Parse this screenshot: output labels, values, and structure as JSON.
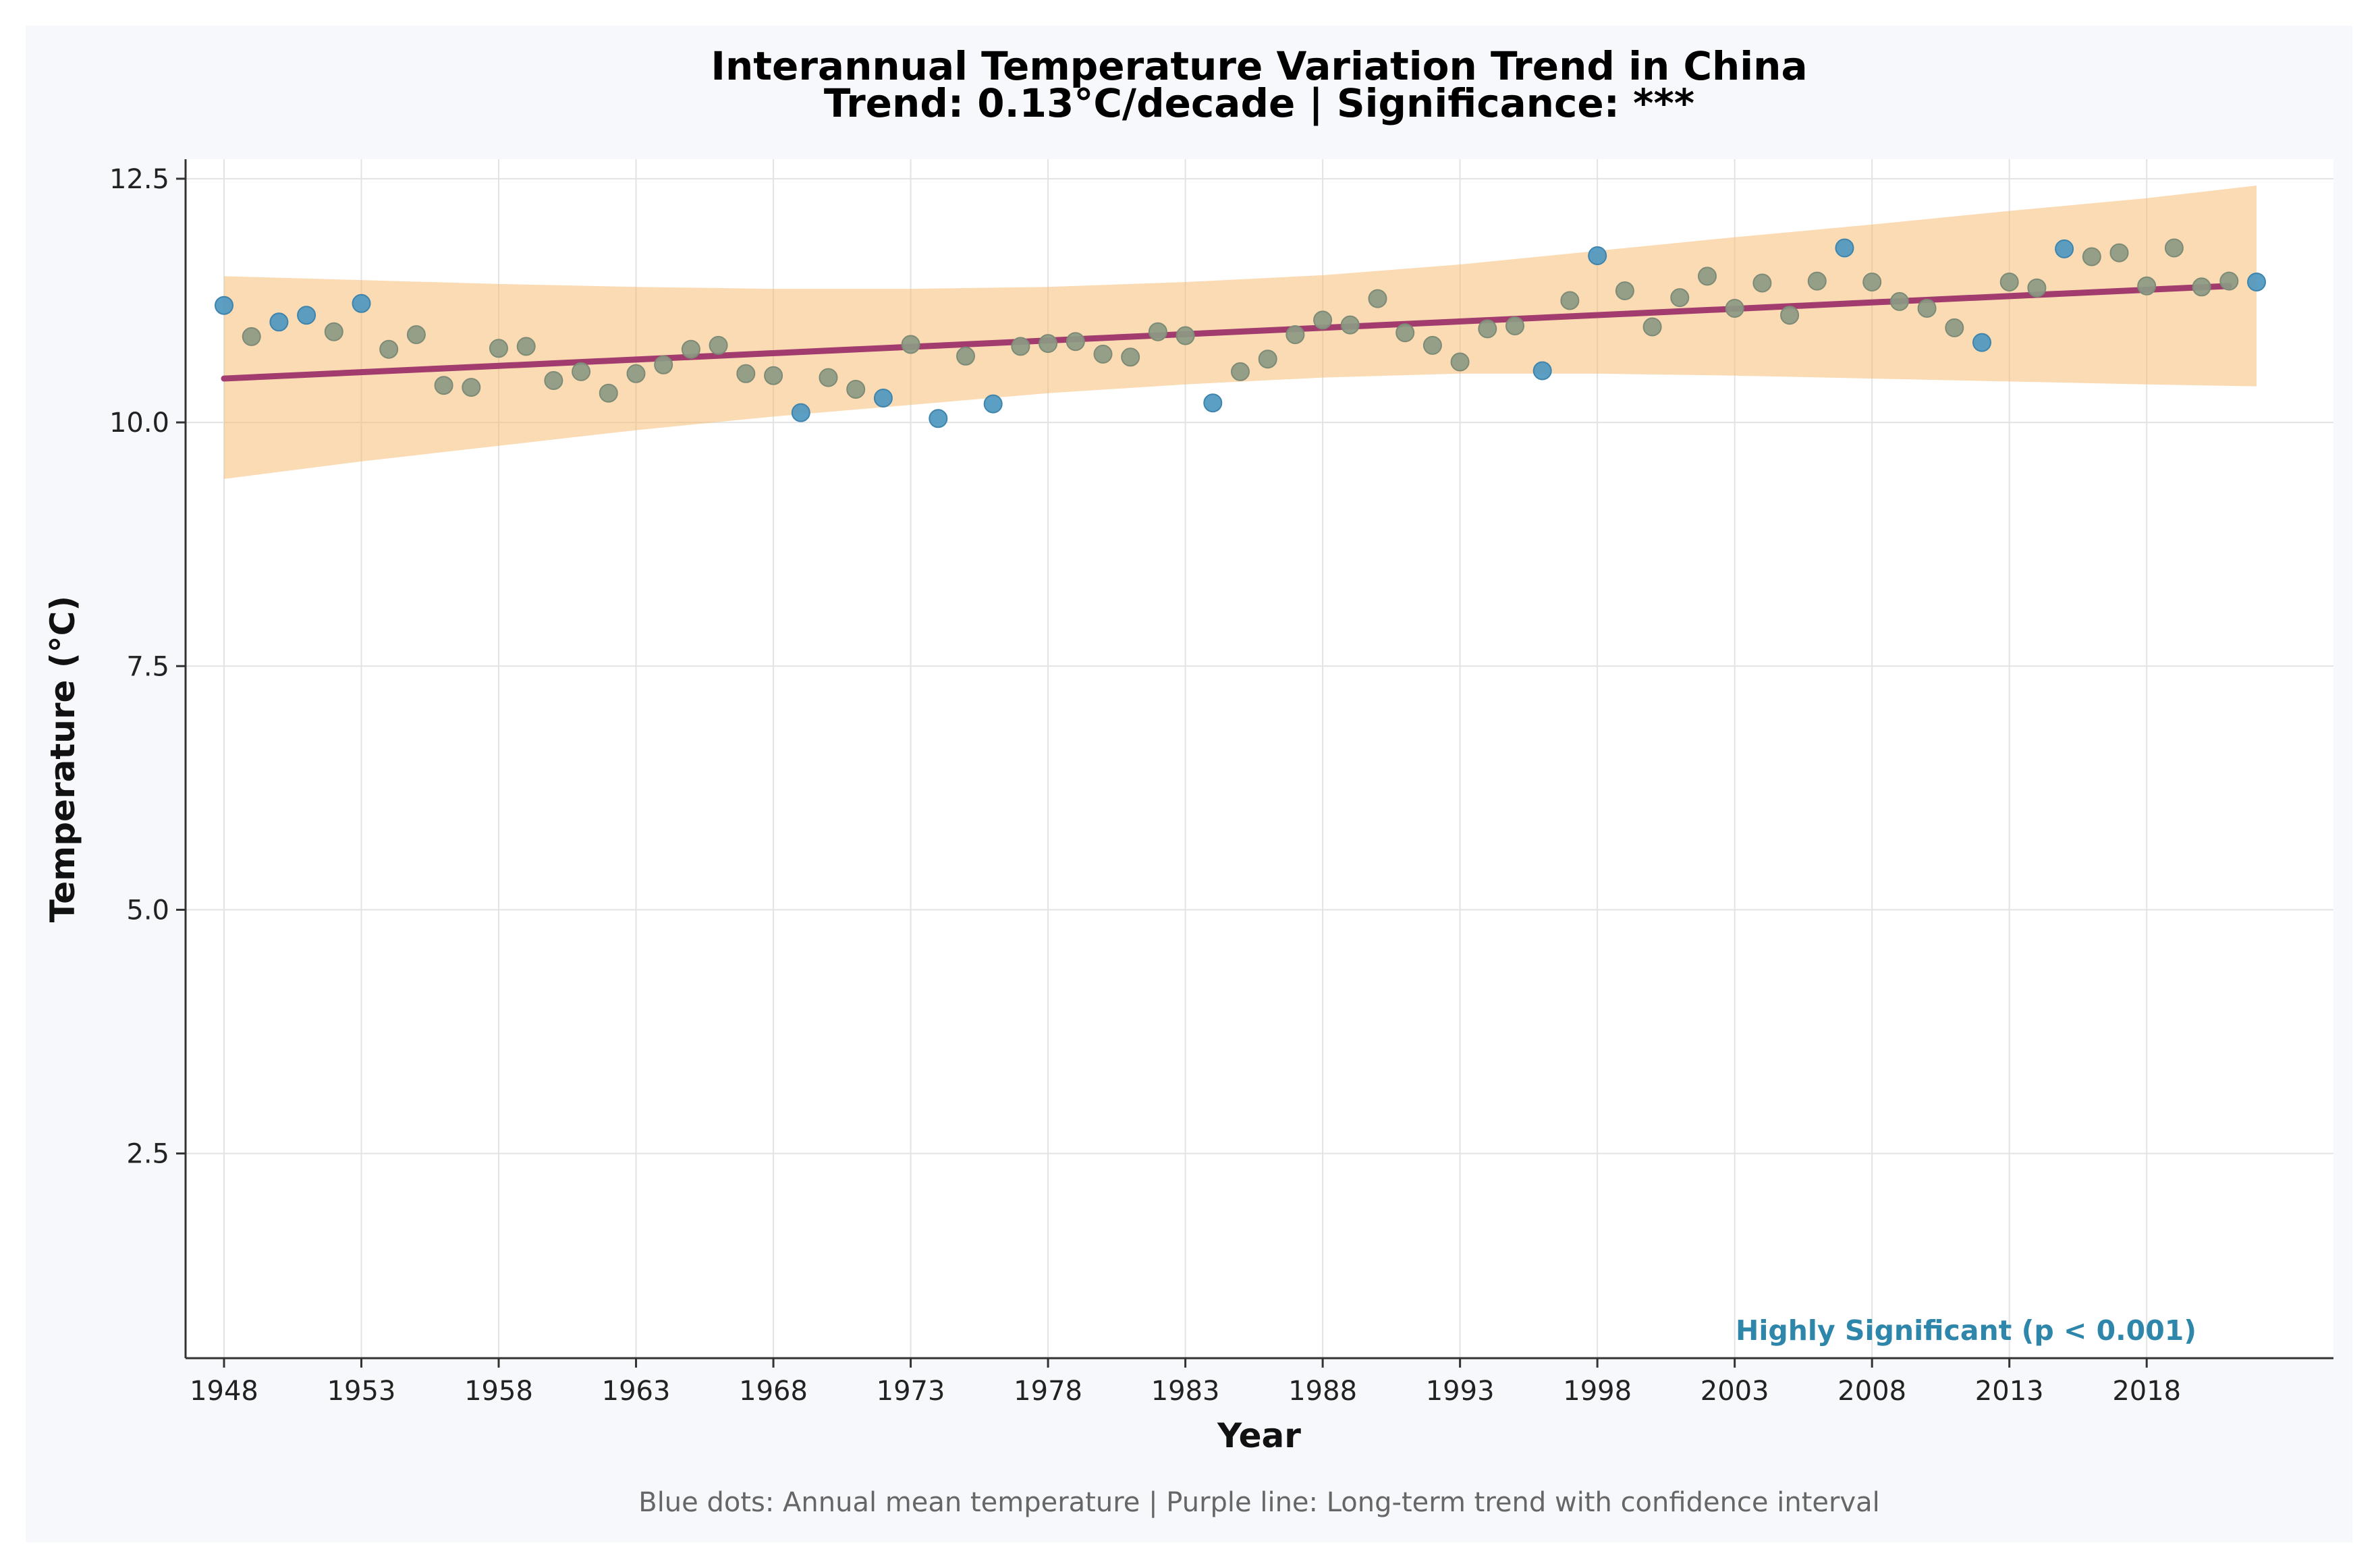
{
  "chart_data": {
    "type": "scatter",
    "title": "Interannual Temperature Variation Trend in China",
    "subtitle": "Trend: 0.13°C/decade | Significance: ***",
    "xlabel": "Year",
    "ylabel": "Temperature (°C)",
    "xlim": [
      1946.6,
      2024.8
    ],
    "ylim": [
      0.4,
      12.7
    ],
    "x_ticks": [
      1948,
      1953,
      1958,
      1963,
      1968,
      1973,
      1978,
      1983,
      1988,
      1993,
      1998,
      2003,
      2008,
      2013,
      2018
    ],
    "y_ticks": [
      2.5,
      5.0,
      7.5,
      10.0,
      12.5
    ],
    "y_tick_labels": [
      "2.5",
      "5.0",
      "7.5",
      "10.0",
      "12.5"
    ],
    "grid": true,
    "annotation": "Highly Significant (p < 0.001)",
    "caption": "Blue dots: Annual mean temperature | Purple line: Long-term trend with confidence interval",
    "series": [
      {
        "name": "Annual mean temperature",
        "kind": "scatter",
        "x": [
          1948,
          1949,
          1950,
          1951,
          1952,
          1953,
          1954,
          1955,
          1956,
          1957,
          1958,
          1959,
          1960,
          1961,
          1962,
          1963,
          1964,
          1965,
          1966,
          1967,
          1968,
          1969,
          1970,
          1971,
          1972,
          1973,
          1974,
          1975,
          1976,
          1977,
          1978,
          1979,
          1980,
          1981,
          1982,
          1983,
          1984,
          1985,
          1986,
          1987,
          1988,
          1989,
          1990,
          1991,
          1992,
          1993,
          1994,
          1995,
          1996,
          1997,
          1998,
          1999,
          2000,
          2001,
          2002,
          2003,
          2004,
          2005,
          2006,
          2007,
          2008,
          2009,
          2010,
          2011,
          2012,
          2013,
          2014,
          2015,
          2016,
          2017,
          2018,
          2019,
          2020,
          2021,
          2022
        ],
        "values": [
          11.2,
          10.88,
          11.03,
          11.1,
          10.93,
          11.22,
          10.75,
          10.9,
          10.38,
          10.36,
          10.76,
          10.78,
          10.43,
          10.52,
          10.3,
          10.5,
          10.59,
          10.75,
          10.79,
          10.5,
          10.48,
          10.1,
          10.46,
          10.34,
          10.25,
          10.8,
          10.04,
          10.68,
          10.19,
          10.78,
          10.81,
          10.83,
          10.7,
          10.67,
          10.93,
          10.89,
          10.2,
          10.52,
          10.65,
          10.9,
          11.05,
          11.0,
          11.27,
          10.92,
          10.79,
          10.62,
          10.96,
          10.99,
          10.53,
          11.25,
          11.71,
          11.35,
          10.98,
          11.28,
          11.5,
          11.17,
          11.43,
          11.1,
          11.45,
          11.79,
          11.44,
          11.24,
          11.17,
          10.97,
          10.82,
          11.44,
          11.38,
          11.78,
          11.7,
          11.74,
          11.4,
          11.79,
          11.39,
          11.45,
          11.44
        ],
        "color_normal": "#8c9a84",
        "color_outlier": "#4e97c0"
      },
      {
        "name": "Long-term trend",
        "kind": "line",
        "x": [
          1948,
          2021
        ],
        "values": [
          10.45,
          11.4
        ],
        "color": "#a23b6e"
      },
      {
        "name": "Confidence interval",
        "kind": "band",
        "x": [
          1948,
          1953,
          1958,
          1963,
          1968,
          1973,
          1978,
          1983,
          1988,
          1993,
          1998,
          2003,
          2008,
          2013,
          2018,
          2022
        ],
        "lower": [
          9.42,
          9.6,
          9.76,
          9.92,
          10.06,
          10.18,
          10.3,
          10.39,
          10.46,
          10.5,
          10.5,
          10.48,
          10.45,
          10.42,
          10.39,
          10.37
        ],
        "upper": [
          11.5,
          11.46,
          11.42,
          11.39,
          11.37,
          11.37,
          11.39,
          11.44,
          11.51,
          11.62,
          11.76,
          11.9,
          12.03,
          12.17,
          12.3,
          12.43
        ],
        "color": "#f5b868"
      }
    ]
  }
}
